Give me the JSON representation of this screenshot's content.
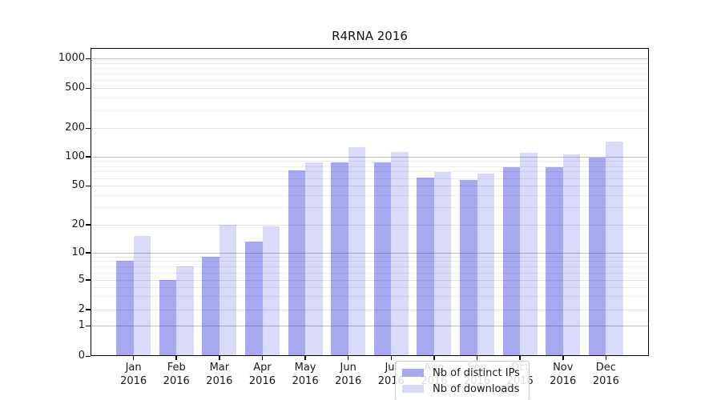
{
  "figure": {
    "background": "#ffffff",
    "text_color": "#1a1a1a"
  },
  "chart_data": {
    "type": "bar",
    "title": "R4RNA 2016",
    "categories": [
      "Jan 2016",
      "Feb 2016",
      "Mar 2016",
      "Apr 2016",
      "May 2016",
      "Jun 2016",
      "Jul 2016",
      "Aug 2016",
      "Sep 2016",
      "Oct 2016",
      "Nov 2016",
      "Dec 2016"
    ],
    "months": [
      "Jan",
      "Feb",
      "Mar",
      "Apr",
      "May",
      "Jun",
      "Jul",
      "Aug",
      "Sep",
      "Oct",
      "Nov",
      "Dec"
    ],
    "year": "2016",
    "series": [
      {
        "name": "Nb of distinct IPs",
        "color": "rgba(0,0,215,0.34)",
        "values": [
          8,
          5,
          9,
          13,
          72,
          88,
          88,
          61,
          57,
          78,
          77,
          97
        ]
      },
      {
        "name": "Nb of downloads",
        "color": "rgba(0,0,215,0.15)",
        "values": [
          15,
          7,
          20,
          19,
          87,
          125,
          112,
          69,
          67,
          110,
          105,
          143
        ]
      }
    ],
    "xlabel": "",
    "ylabel": "",
    "yscale": "symlog",
    "yticks": [
      0,
      1,
      2,
      5,
      10,
      20,
      50,
      100,
      200,
      500,
      1000
    ],
    "ylim": [
      0,
      1300
    ],
    "grid": true,
    "legend_position": "inside-bottom-center"
  }
}
